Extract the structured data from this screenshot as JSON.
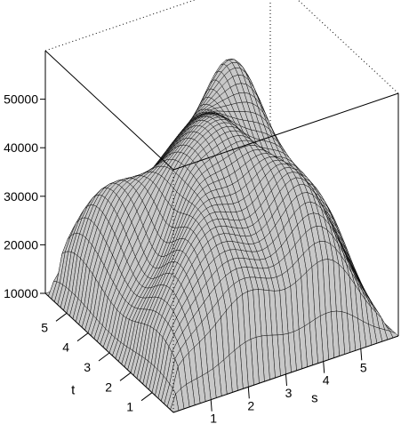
{
  "chart_data": {
    "type": "surface3d",
    "title": "",
    "xlabel": "s",
    "ylabel": "t",
    "zlabel": "",
    "xlim": [
      0,
      6
    ],
    "ylim": [
      0,
      6
    ],
    "zlim": [
      10000,
      60000
    ],
    "x_ticks": [
      "1",
      "2",
      "3",
      "4",
      "5"
    ],
    "y_ticks": [
      "1",
      "2",
      "3",
      "4",
      "5"
    ],
    "z_ticks": [
      "10000",
      "20000",
      "30000",
      "40000",
      "50000"
    ],
    "x_tick_values": [
      1,
      2,
      3,
      4,
      5
    ],
    "y_tick_values": [
      1,
      2,
      3,
      4,
      5
    ],
    "z_tick_values": [
      10000,
      20000,
      30000,
      40000,
      50000
    ],
    "surface_color": "#c8c8c8",
    "mesh_color": "#000000",
    "box": "open-dotted"
  }
}
